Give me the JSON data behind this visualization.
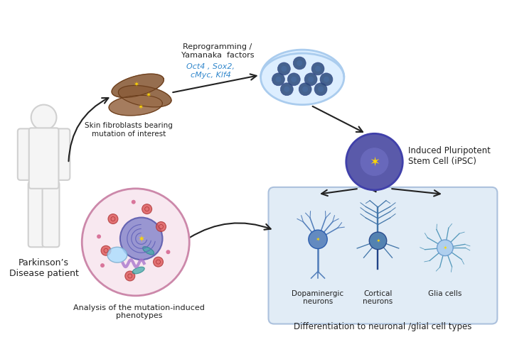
{
  "background_color": "#ffffff",
  "title": "",
  "texts": {
    "pd_patient": "Parkinson’s\nDisease patient",
    "skin_fibroblasts": "Skin fibroblasts bearing\nmutation of interest",
    "reprogramming": "Reprogramming /\nYamanaka  factors",
    "factors": "Oct4 , Sox2,\ncMyc, Klf4",
    "ipsc": "Induced Pluripotent\nStem Cell (iPSC)",
    "differentiation": "Differentiation to neuronal /glial cell types",
    "dopaminergic": "Dopaminergic\nneurons",
    "cortical": "Cortical\nneurons",
    "glia": "Glia cells",
    "analysis": "Analysis of the mutation-induced\nphenotypes"
  },
  "colors": {
    "body_outline": "#d0d0d0",
    "body_fill": "#f5f5f5",
    "fibroblast": "#8B5E3C",
    "fibroblast_dark": "#6B3E1C",
    "star_yellow": "#FFD700",
    "petri_fill": "#ddeeff",
    "petri_outline": "#aaccee",
    "cell_blue": "#4a6fa5",
    "cell_dark_blue": "#2a4a7a",
    "ipsc_fill": "#5a5aaa",
    "ipsc_stroke": "#4040aa",
    "box_fill": "#dce9f5",
    "box_stroke": "#a0b8d8",
    "neuron_color": "#5580bb",
    "neuron_dark": "#2255aa",
    "glia_color": "#88bbdd",
    "arrow_color": "#222222",
    "text_dark": "#222222",
    "text_blue": "#3388cc",
    "nucleus_fill": "#7070bb",
    "nucleus_stroke": "#5050aa",
    "cell_body_fill": "#f0d0e0",
    "cell_body_stroke": "#cc88aa",
    "organelle_red": "#cc4444",
    "organelle_blue": "#aaddff",
    "organelle_teal": "#44aaaa",
    "organelle_purple": "#aa88cc"
  }
}
